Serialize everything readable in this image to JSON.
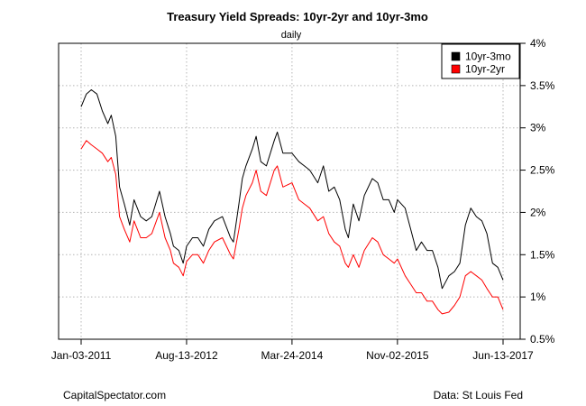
{
  "chart_data": {
    "type": "line",
    "title": "Treasury Yield Spreads: 10yr-2yr and 10yr-3mo",
    "subtitle": "daily",
    "x_ticks": [
      "Jan-03-2011",
      "Aug-13-2012",
      "Mar-24-2014",
      "Nov-02-2015",
      "Jun-13-2017"
    ],
    "y_ticks": [
      "0.5%",
      "1%",
      "1.5%",
      "2%",
      "2.5%",
      "3%",
      "3.5%",
      "4%"
    ],
    "xlim": [
      "2011-01-03",
      "2017-06-13"
    ],
    "ylim": [
      0.5,
      4.0
    ],
    "grid": true,
    "legend_position": "top-right",
    "series": [
      {
        "name": "10yr-3mo",
        "color": "#000000",
        "points": [
          [
            "2011-01-03",
            3.25
          ],
          [
            "2011-02-01",
            3.4
          ],
          [
            "2011-03-01",
            3.45
          ],
          [
            "2011-04-01",
            3.4
          ],
          [
            "2011-05-01",
            3.2
          ],
          [
            "2011-06-01",
            3.05
          ],
          [
            "2011-06-20",
            3.15
          ],
          [
            "2011-07-15",
            2.9
          ],
          [
            "2011-08-05",
            2.3
          ],
          [
            "2011-09-01",
            2.1
          ],
          [
            "2011-10-01",
            1.85
          ],
          [
            "2011-10-25",
            2.15
          ],
          [
            "2011-12-01",
            1.95
          ],
          [
            "2012-01-01",
            1.9
          ],
          [
            "2012-02-01",
            1.95
          ],
          [
            "2012-03-15",
            2.25
          ],
          [
            "2012-04-15",
            1.95
          ],
          [
            "2012-05-15",
            1.75
          ],
          [
            "2012-06-01",
            1.6
          ],
          [
            "2012-07-01",
            1.55
          ],
          [
            "2012-07-25",
            1.4
          ],
          [
            "2012-08-13",
            1.6
          ],
          [
            "2012-09-15",
            1.7
          ],
          [
            "2012-10-15",
            1.7
          ],
          [
            "2012-11-15",
            1.6
          ],
          [
            "2012-12-15",
            1.8
          ],
          [
            "2013-01-15",
            1.9
          ],
          [
            "2013-03-01",
            1.95
          ],
          [
            "2013-04-15",
            1.7
          ],
          [
            "2013-05-01",
            1.65
          ],
          [
            "2013-06-01",
            2.1
          ],
          [
            "2013-06-20",
            2.4
          ],
          [
            "2013-07-10",
            2.55
          ],
          [
            "2013-08-15",
            2.75
          ],
          [
            "2013-09-05",
            2.9
          ],
          [
            "2013-10-01",
            2.6
          ],
          [
            "2013-11-01",
            2.55
          ],
          [
            "2013-12-15",
            2.85
          ],
          [
            "2014-01-01",
            2.95
          ],
          [
            "2014-02-01",
            2.7
          ],
          [
            "2014-03-24",
            2.7
          ],
          [
            "2014-05-01",
            2.6
          ],
          [
            "2014-06-01",
            2.55
          ],
          [
            "2014-07-01",
            2.5
          ],
          [
            "2014-08-15",
            2.35
          ],
          [
            "2014-09-15",
            2.55
          ],
          [
            "2014-10-15",
            2.25
          ],
          [
            "2014-11-15",
            2.3
          ],
          [
            "2014-12-15",
            2.15
          ],
          [
            "2015-01-15",
            1.8
          ],
          [
            "2015-02-01",
            1.7
          ],
          [
            "2015-03-01",
            2.1
          ],
          [
            "2015-04-01",
            1.9
          ],
          [
            "2015-05-01",
            2.2
          ],
          [
            "2015-06-15",
            2.4
          ],
          [
            "2015-07-15",
            2.35
          ],
          [
            "2015-08-15",
            2.15
          ],
          [
            "2015-09-15",
            2.15
          ],
          [
            "2015-10-15",
            2.0
          ],
          [
            "2015-11-02",
            2.15
          ],
          [
            "2015-12-15",
            2.05
          ],
          [
            "2016-01-15",
            1.8
          ],
          [
            "2016-02-15",
            1.55
          ],
          [
            "2016-03-15",
            1.65
          ],
          [
            "2016-04-15",
            1.55
          ],
          [
            "2016-05-15",
            1.55
          ],
          [
            "2016-06-15",
            1.35
          ],
          [
            "2016-07-08",
            1.1
          ],
          [
            "2016-08-15",
            1.25
          ],
          [
            "2016-09-15",
            1.3
          ],
          [
            "2016-10-15",
            1.4
          ],
          [
            "2016-11-15",
            1.85
          ],
          [
            "2016-12-15",
            2.05
          ],
          [
            "2017-01-15",
            1.95
          ],
          [
            "2017-02-15",
            1.9
          ],
          [
            "2017-03-15",
            1.75
          ],
          [
            "2017-04-15",
            1.4
          ],
          [
            "2017-05-15",
            1.35
          ],
          [
            "2017-06-13",
            1.2
          ]
        ]
      },
      {
        "name": "10yr-2yr",
        "color": "#ff0000",
        "points": [
          [
            "2011-01-03",
            2.75
          ],
          [
            "2011-02-01",
            2.85
          ],
          [
            "2011-03-01",
            2.8
          ],
          [
            "2011-04-01",
            2.75
          ],
          [
            "2011-05-01",
            2.7
          ],
          [
            "2011-06-01",
            2.6
          ],
          [
            "2011-06-20",
            2.65
          ],
          [
            "2011-07-15",
            2.45
          ],
          [
            "2011-08-05",
            1.95
          ],
          [
            "2011-09-01",
            1.8
          ],
          [
            "2011-10-01",
            1.65
          ],
          [
            "2011-10-25",
            1.9
          ],
          [
            "2011-12-01",
            1.7
          ],
          [
            "2012-01-01",
            1.7
          ],
          [
            "2012-02-01",
            1.75
          ],
          [
            "2012-03-15",
            2.0
          ],
          [
            "2012-04-15",
            1.7
          ],
          [
            "2012-05-15",
            1.55
          ],
          [
            "2012-06-01",
            1.4
          ],
          [
            "2012-07-01",
            1.35
          ],
          [
            "2012-07-25",
            1.25
          ],
          [
            "2012-08-13",
            1.42
          ],
          [
            "2012-09-15",
            1.5
          ],
          [
            "2012-10-15",
            1.5
          ],
          [
            "2012-11-15",
            1.4
          ],
          [
            "2012-12-15",
            1.55
          ],
          [
            "2013-01-15",
            1.65
          ],
          [
            "2013-03-01",
            1.7
          ],
          [
            "2013-04-15",
            1.5
          ],
          [
            "2013-05-01",
            1.45
          ],
          [
            "2013-06-01",
            1.8
          ],
          [
            "2013-06-20",
            2.05
          ],
          [
            "2013-07-10",
            2.2
          ],
          [
            "2013-08-15",
            2.35
          ],
          [
            "2013-09-05",
            2.5
          ],
          [
            "2013-10-01",
            2.25
          ],
          [
            "2013-11-01",
            2.2
          ],
          [
            "2013-12-15",
            2.5
          ],
          [
            "2014-01-01",
            2.55
          ],
          [
            "2014-02-01",
            2.3
          ],
          [
            "2014-03-24",
            2.35
          ],
          [
            "2014-05-01",
            2.15
          ],
          [
            "2014-06-01",
            2.1
          ],
          [
            "2014-07-01",
            2.05
          ],
          [
            "2014-08-15",
            1.9
          ],
          [
            "2014-09-15",
            1.95
          ],
          [
            "2014-10-15",
            1.75
          ],
          [
            "2014-11-15",
            1.65
          ],
          [
            "2014-12-15",
            1.6
          ],
          [
            "2015-01-15",
            1.4
          ],
          [
            "2015-02-01",
            1.35
          ],
          [
            "2015-03-01",
            1.5
          ],
          [
            "2015-04-01",
            1.35
          ],
          [
            "2015-05-01",
            1.55
          ],
          [
            "2015-06-15",
            1.7
          ],
          [
            "2015-07-15",
            1.65
          ],
          [
            "2015-08-15",
            1.5
          ],
          [
            "2015-09-15",
            1.45
          ],
          [
            "2015-10-15",
            1.4
          ],
          [
            "2015-11-02",
            1.45
          ],
          [
            "2015-12-15",
            1.25
          ],
          [
            "2016-01-15",
            1.15
          ],
          [
            "2016-02-15",
            1.05
          ],
          [
            "2016-03-15",
            1.05
          ],
          [
            "2016-04-15",
            0.95
          ],
          [
            "2016-05-15",
            0.95
          ],
          [
            "2016-06-15",
            0.85
          ],
          [
            "2016-07-08",
            0.8
          ],
          [
            "2016-08-15",
            0.82
          ],
          [
            "2016-09-15",
            0.9
          ],
          [
            "2016-10-15",
            1.0
          ],
          [
            "2016-11-15",
            1.25
          ],
          [
            "2016-12-15",
            1.3
          ],
          [
            "2017-01-15",
            1.25
          ],
          [
            "2017-02-15",
            1.2
          ],
          [
            "2017-03-15",
            1.1
          ],
          [
            "2017-04-15",
            1.0
          ],
          [
            "2017-05-15",
            1.0
          ],
          [
            "2017-06-13",
            0.85
          ]
        ]
      }
    ]
  },
  "footer": {
    "left": "CapitalSpectator.com",
    "right": "Data: St Louis Fed"
  }
}
